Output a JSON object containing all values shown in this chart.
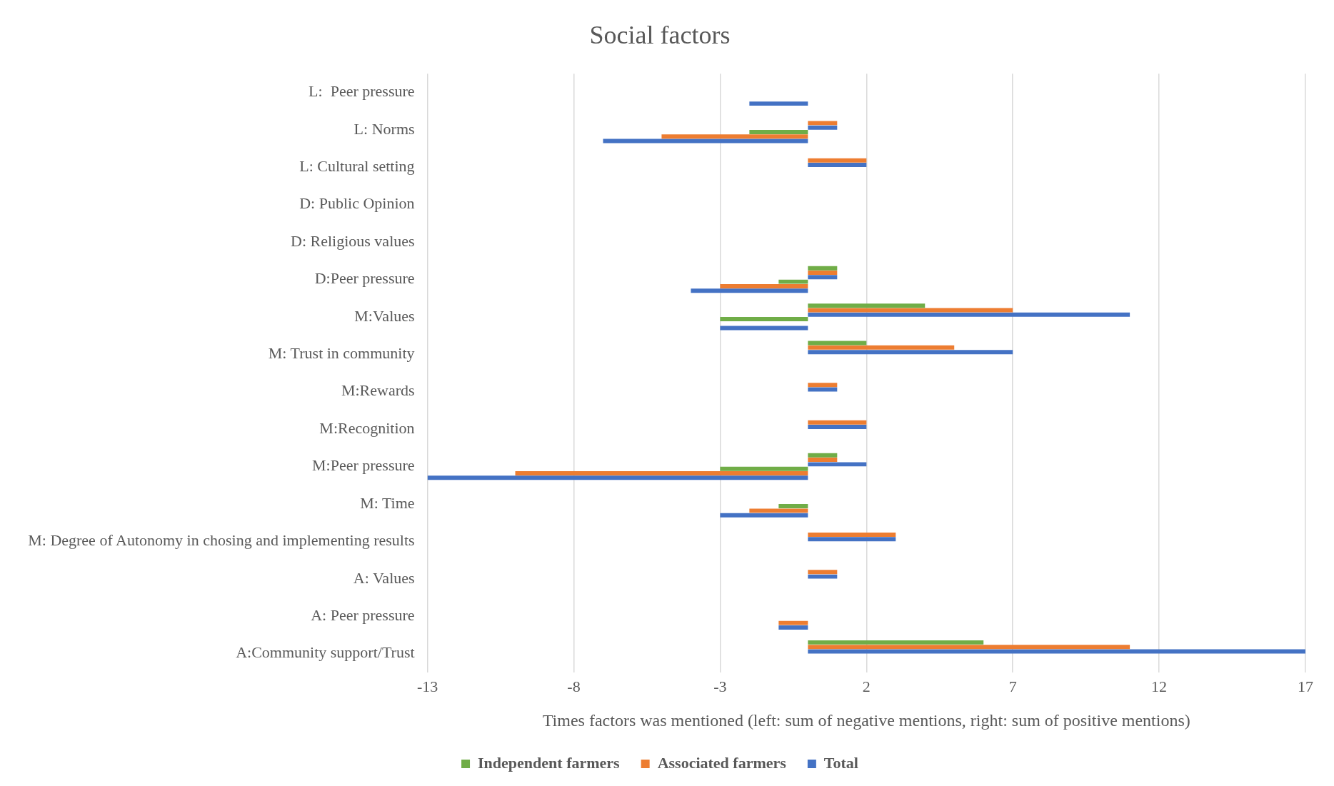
{
  "chart_data": {
    "type": "bar",
    "orientation": "horizontal",
    "title": "Social factors",
    "xlabel": "Times factors was mentioned (left: sum of negative mentions, right: sum of positive mentions)",
    "categories": [
      "L:  Peer pressure",
      "L: Norms",
      "L: Cultural setting",
      "D: Public Opinion",
      "D: Religious values",
      "D:Peer pressure",
      "M:Values",
      "M: Trust in community",
      "M:Rewards",
      "M:Recognition",
      "M:Peer pressure",
      "M: Time",
      "M: Degree of Autonomy in chosing and implementing results",
      "A: Values",
      "A: Peer pressure",
      "A:Community support/Trust"
    ],
    "series": [
      {
        "name": "Independent farmers",
        "color": "#70ad47",
        "values": [
          null,
          null,
          null,
          null,
          null,
          1,
          4,
          2,
          null,
          null,
          1,
          null,
          null,
          null,
          null,
          6
        ]
      },
      {
        "name": "Associated farmers",
        "color": "#ed7d31",
        "values": [
          null,
          1,
          2,
          null,
          null,
          1,
          7,
          5,
          1,
          2,
          1,
          null,
          3,
          1,
          null,
          11
        ]
      },
      {
        "name": "Total",
        "color": "#4472c4",
        "values": [
          null,
          1,
          2,
          null,
          null,
          1,
          11,
          7,
          1,
          2,
          2,
          null,
          3,
          1,
          null,
          17
        ]
      },
      {
        "color": "#70ad47",
        "values": [
          null,
          -2,
          null,
          null,
          null,
          -1,
          -3,
          null,
          null,
          null,
          -3,
          -1,
          null,
          null,
          null,
          null
        ]
      },
      {
        "color": "#ed7d31",
        "values": [
          null,
          -5,
          null,
          null,
          null,
          -3,
          null,
          null,
          null,
          null,
          -10,
          -2,
          null,
          null,
          -1,
          null
        ]
      },
      {
        "color": "#4472c4",
        "values": [
          -2,
          -7,
          null,
          null,
          null,
          -4,
          -3,
          null,
          null,
          null,
          -13,
          -3,
          null,
          null,
          -1,
          null
        ]
      }
    ],
    "xlim": [
      -13,
      17
    ],
    "xticks": [
      -13,
      -8,
      -3,
      2,
      7,
      12,
      17
    ],
    "grid": "x",
    "legend": "bottom"
  }
}
